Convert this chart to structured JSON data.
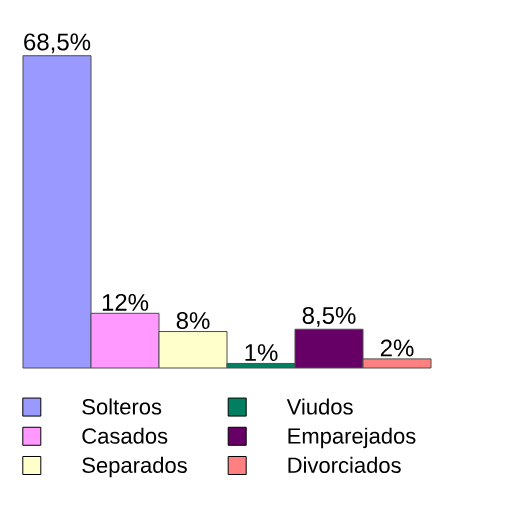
{
  "chart_data": {
    "type": "bar",
    "categories": [
      null
    ],
    "legend": "bottom",
    "series": [
      {
        "name": "Solteros",
        "color": "#9999ff",
        "values": [
          68.5
        ],
        "value_labels": [
          "68,5%"
        ]
      },
      {
        "name": "Casados",
        "color": "#ff99ff",
        "values": [
          12
        ],
        "value_labels": [
          "12%"
        ]
      },
      {
        "name": "Separados",
        "color": "#ffffcc",
        "values": [
          8
        ],
        "value_labels": [
          "8%"
        ]
      },
      {
        "name": "Viudos",
        "color": "#008060",
        "values": [
          1
        ],
        "value_labels": [
          "1%"
        ]
      },
      {
        "name": "Emparejados",
        "color": "#660066",
        "values": [
          8.5
        ],
        "value_labels": [
          "8,5%"
        ]
      },
      {
        "name": "Divorciados",
        "color": "#ff8080",
        "values": [
          2
        ],
        "value_labels": [
          "2%"
        ]
      }
    ]
  }
}
